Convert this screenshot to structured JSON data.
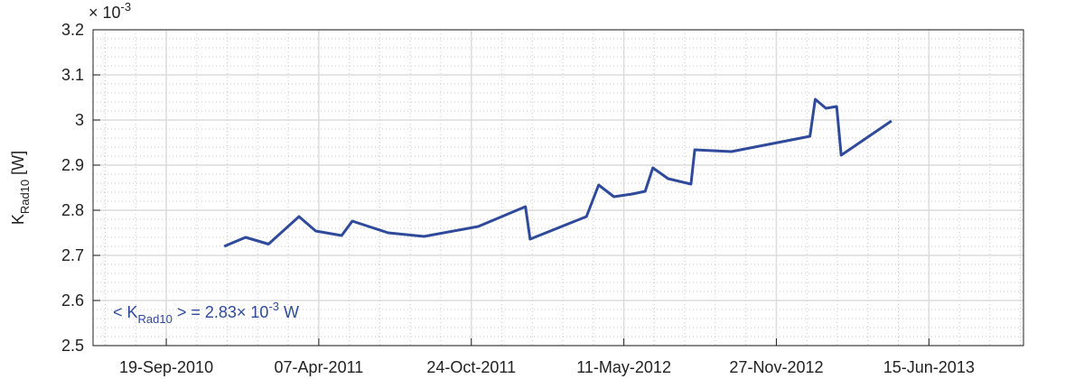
{
  "chart_data": {
    "type": "line",
    "y_multiplier": {
      "base": "× 10",
      "exponent": "-3"
    },
    "ylabel": {
      "main": "K",
      "sub": "Rad10",
      "unit": " [W]"
    },
    "annotation": {
      "pre": "< K",
      "sub": "Rad10",
      "mid": " > = 2.83× 10",
      "sup": "-3",
      "post": " W"
    },
    "xlim": [
      "2010-06-15",
      "2013-10-17"
    ],
    "xticks": [
      {
        "value": "2010-09-19",
        "label": "19-Sep-2010"
      },
      {
        "value": "2011-04-07",
        "label": "07-Apr-2011"
      },
      {
        "value": "2011-10-24",
        "label": "24-Oct-2011"
      },
      {
        "value": "2012-05-11",
        "label": "11-May-2012"
      },
      {
        "value": "2012-11-27",
        "label": "27-Nov-2012"
      },
      {
        "value": "2013-06-15",
        "label": "15-Jun-2013"
      }
    ],
    "ylim": [
      2.5,
      3.2
    ],
    "yticks": [
      2.5,
      2.6,
      2.7,
      2.8,
      2.9,
      3,
      3.1,
      3.2
    ],
    "grid": true,
    "minor_grid": true,
    "series": [
      {
        "color": "#2f4a9a",
        "x": [
          "2010-12-04",
          "2011-01-01",
          "2011-01-31",
          "2011-03-12",
          "2011-04-03",
          "2011-05-07",
          "2011-05-21",
          "2011-07-07",
          "2011-08-23",
          "2011-11-02",
          "2012-01-03",
          "2012-01-09",
          "2012-03-23",
          "2012-04-08",
          "2012-04-28",
          "2012-05-22",
          "2012-06-08",
          "2012-06-18",
          "2012-07-08",
          "2012-08-07",
          "2012-08-12",
          "2012-09-29",
          "2013-01-10",
          "2013-01-17",
          "2013-01-31",
          "2013-02-14",
          "2013-02-20",
          "2013-04-27"
        ],
        "values": [
          2.72,
          2.74,
          2.725,
          2.786,
          2.754,
          2.744,
          2.776,
          2.75,
          2.742,
          2.764,
          2.808,
          2.736,
          2.786,
          2.856,
          2.83,
          2.836,
          2.842,
          2.894,
          2.87,
          2.858,
          2.934,
          2.93,
          2.964,
          3.046,
          3.026,
          3.03,
          2.922,
          2.998
        ]
      }
    ]
  }
}
